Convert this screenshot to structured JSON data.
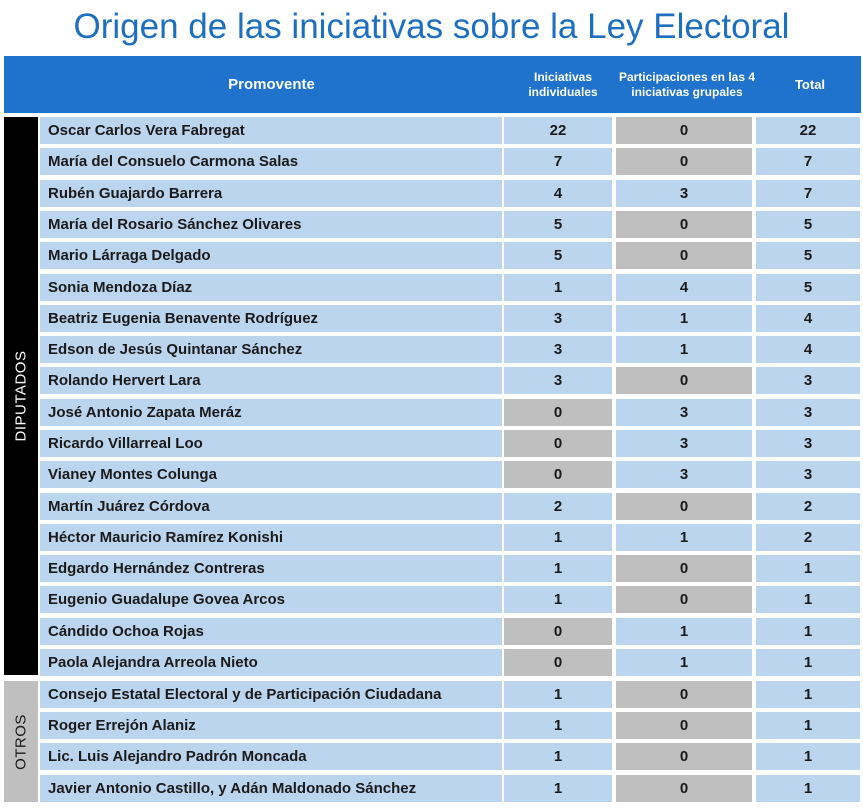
{
  "title": "Origen de las iniciativas sobre la Ley Electoral",
  "headers": {
    "promovente": "Promovente",
    "individuales": "Iniciativas individuales",
    "participaciones": "Participaciones en las 4 iniciativas grupales",
    "total": "Total"
  },
  "groups": [
    {
      "label": "DIPUTADOS",
      "rows": [
        {
          "name": "Oscar Carlos Vera Fabregat",
          "individuales": "22",
          "participaciones": "0",
          "total": "22"
        },
        {
          "name": "María del Consuelo Carmona Salas",
          "individuales": "7",
          "participaciones": "0",
          "total": "7"
        },
        {
          "name": "Rubén Guajardo Barrera",
          "individuales": "4",
          "participaciones": "3",
          "total": "7"
        },
        {
          "name": "María del Rosario Sánchez Olivares",
          "individuales": "5",
          "participaciones": "0",
          "total": "5"
        },
        {
          "name": "Mario Lárraga Delgado",
          "individuales": "5",
          "participaciones": "0",
          "total": "5"
        },
        {
          "name": "Sonia Mendoza Díaz",
          "individuales": "1",
          "participaciones": "4",
          "total": "5"
        },
        {
          "name": "Beatriz Eugenia Benavente Rodríguez",
          "individuales": "3",
          "participaciones": "1",
          "total": "4"
        },
        {
          "name": "Edson de Jesús Quintanar Sánchez",
          "individuales": "3",
          "participaciones": "1",
          "total": "4"
        },
        {
          "name": "Rolando Hervert Lara",
          "individuales": "3",
          "participaciones": "0",
          "total": "3"
        },
        {
          "name": "José Antonio Zapata Meráz",
          "individuales": "0",
          "participaciones": "3",
          "total": "3"
        },
        {
          "name": "Ricardo Villarreal Loo",
          "individuales": "0",
          "participaciones": "3",
          "total": "3"
        },
        {
          "name": "Vianey Montes Colunga",
          "individuales": "0",
          "participaciones": "3",
          "total": "3"
        },
        {
          "name": "Martín Juárez Córdova",
          "individuales": "2",
          "participaciones": "0",
          "total": "2"
        },
        {
          "name": "Héctor Mauricio Ramírez Konishi",
          "individuales": "1",
          "participaciones": "1",
          "total": "2"
        },
        {
          "name": "Edgardo Hernández Contreras",
          "individuales": "1",
          "participaciones": "0",
          "total": "1"
        },
        {
          "name": "Eugenio Guadalupe Govea Arcos",
          "individuales": "1",
          "participaciones": "0",
          "total": "1"
        },
        {
          "name": "Cándido Ochoa Rojas",
          "individuales": "0",
          "participaciones": "1",
          "total": "1"
        },
        {
          "name": "Paola Alejandra Arreola Nieto",
          "individuales": "0",
          "participaciones": "1",
          "total": "1"
        }
      ]
    },
    {
      "label": "OTROS",
      "rows": [
        {
          "name": "Consejo Estatal Electoral y de Participación Ciudadana",
          "individuales": "1",
          "participaciones": "0",
          "total": "1"
        },
        {
          "name": "Roger Errejón Alaniz",
          "individuales": "1",
          "participaciones": "0",
          "total": "1"
        },
        {
          "name": "Lic. Luis Alejandro Padrón Moncada",
          "individuales": "1",
          "participaciones": "0",
          "total": "1"
        },
        {
          "name": "Javier Antonio Castillo, y Adán Maldonado Sánchez",
          "individuales": "1",
          "participaciones": "0",
          "total": "1"
        }
      ]
    }
  ],
  "colors": {
    "title": "#1f6fc0",
    "header_bg": "#1f73cd",
    "cell_blue": "#bcd5ee",
    "cell_grey": "#bfbfbf",
    "diputados_band": "#000000",
    "otros_band": "#bfbfbf"
  }
}
